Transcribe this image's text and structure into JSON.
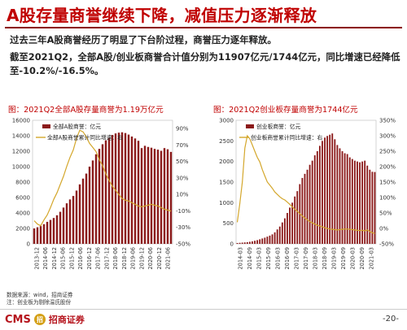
{
  "title": "A股存量商誉继续下降，减值压力逐渐释放",
  "bullets": [
    "过去三年A股商誉经历了明显了下台阶过程，商誉压力逐年释放。",
    "截至2021Q2，全部A股/创业板商誉合计值分别为11907亿元/1744亿元，同比增速已经降低至-10.2%/-16.5%。"
  ],
  "notes": [
    "数据来源：wind，招商证券",
    "注：创业板为剔除温氏股份"
  ],
  "footer": {
    "logo_text": "CMS",
    "logo_mark": "招",
    "logo_name": "招商证券",
    "page": "-20-"
  },
  "colors": {
    "bar": "#8b1a1a",
    "line": "#d4a72c",
    "title": "#c00000"
  },
  "chart_data": [
    {
      "type": "bar",
      "panel_title": "图：2021Q2全部A股存量商誉为1.19万亿元",
      "series": [
        {
          "name": "全部A股商誉：亿元",
          "type": "bar",
          "axis": "left",
          "values": [
            2000,
            2150,
            2300,
            2550,
            2850,
            3100,
            3350,
            3700,
            4150,
            4700,
            5250,
            5750,
            6200,
            6900,
            7700,
            8450,
            9100,
            10000,
            10800,
            11600,
            12300,
            12900,
            13400,
            13700,
            14100,
            14300,
            14400,
            14450,
            14350,
            14150,
            13900,
            13650,
            13350,
            12400,
            12700,
            12550,
            12450,
            12300,
            12200,
            12050,
            12400,
            12250,
            11907
          ]
        },
        {
          "name": "全部A股商誉累计同比增速：右",
          "type": "line",
          "axis": "right",
          "values": [
            -22,
            -26,
            -28,
            -21,
            -15,
            -6,
            4,
            12,
            22,
            32,
            44,
            55,
            64,
            78,
            88,
            86,
            80,
            72,
            67,
            62,
            52,
            45,
            35,
            27,
            20,
            15,
            10,
            5,
            3,
            2,
            0,
            -2,
            -4,
            -5,
            -4,
            -3,
            -2,
            -3,
            -4,
            -6,
            -8,
            -9,
            -10.2
          ]
        }
      ],
      "x_tick_labels": [
        "2013-12",
        "2014-06",
        "2014-12",
        "2015-06",
        "2015-12",
        "2016-06",
        "2016-12",
        "2017-06",
        "2017-12",
        "2018-06",
        "2018-12",
        "2019-06",
        "2019-12",
        "2020-06",
        "2020-12",
        "2021-06"
      ],
      "y_left_ticks": [
        "0",
        "2000",
        "4000",
        "6000",
        "8000",
        "10000",
        "12000",
        "14000",
        "16000"
      ],
      "y_left_range": [
        0,
        16000
      ],
      "y_right_ticks": [
        "-50%",
        "-30%",
        "-10%",
        "10%",
        "30%",
        "50%",
        "70%",
        "90%"
      ],
      "y_right_range": [
        -50,
        100
      ],
      "legend_position": "top-left"
    },
    {
      "type": "bar",
      "panel_title": "图：2021Q2创业板存量商誉为1744亿元",
      "series": [
        {
          "name": "创业板商誉：亿元",
          "type": "bar",
          "axis": "left",
          "values": [
            20,
            25,
            30,
            35,
            40,
            50,
            60,
            75,
            90,
            110,
            130,
            150,
            175,
            200,
            230,
            280,
            350,
            420,
            520,
            620,
            750,
            880,
            1000,
            1150,
            1280,
            1450,
            1600,
            1700,
            1800,
            1920,
            2020,
            2150,
            2250,
            2380,
            2500,
            2580,
            2620,
            2650,
            2680,
            2540,
            2400,
            2320,
            2250,
            2200,
            2180,
            2100,
            2060,
            2020,
            2000,
            1980,
            2000,
            2020,
            1900,
            1800,
            1750,
            1744
          ]
        },
        {
          "name": "创业板商誉累计同比增速：右",
          "type": "line",
          "axis": "right",
          "values": [
            20,
            80,
            150,
            260,
            300,
            290,
            270,
            250,
            230,
            215,
            190,
            170,
            150,
            140,
            130,
            118,
            110,
            102,
            96,
            92,
            85,
            78,
            70,
            62,
            55,
            48,
            40,
            34,
            28,
            22,
            18,
            14,
            10,
            8,
            5,
            2,
            0,
            -2,
            -3,
            -4,
            -5,
            -4,
            -3,
            -2,
            -2,
            -3,
            -4,
            -5,
            -6,
            -7,
            -6,
            -8,
            -5,
            -10,
            -14,
            -16.5
          ]
        }
      ],
      "x_tick_labels": [
        "2014-03",
        "2014-09",
        "2015-03",
        "2015-09",
        "2016-03",
        "2016-09",
        "2017-03",
        "2017-09",
        "2018-03",
        "2018-09",
        "2019-03",
        "2019-09",
        "2020-03",
        "2020-09",
        "2021-03"
      ],
      "y_left_ticks": [
        "0",
        "500",
        "1000",
        "1500",
        "2000",
        "2500",
        "3000"
      ],
      "y_left_range": [
        0,
        3000
      ],
      "y_right_ticks": [
        "-50%",
        "0%",
        "50%",
        "100%",
        "150%",
        "200%",
        "250%",
        "300%",
        "350%"
      ],
      "y_right_range": [
        -50,
        350
      ],
      "legend_position": "top-left"
    }
  ]
}
